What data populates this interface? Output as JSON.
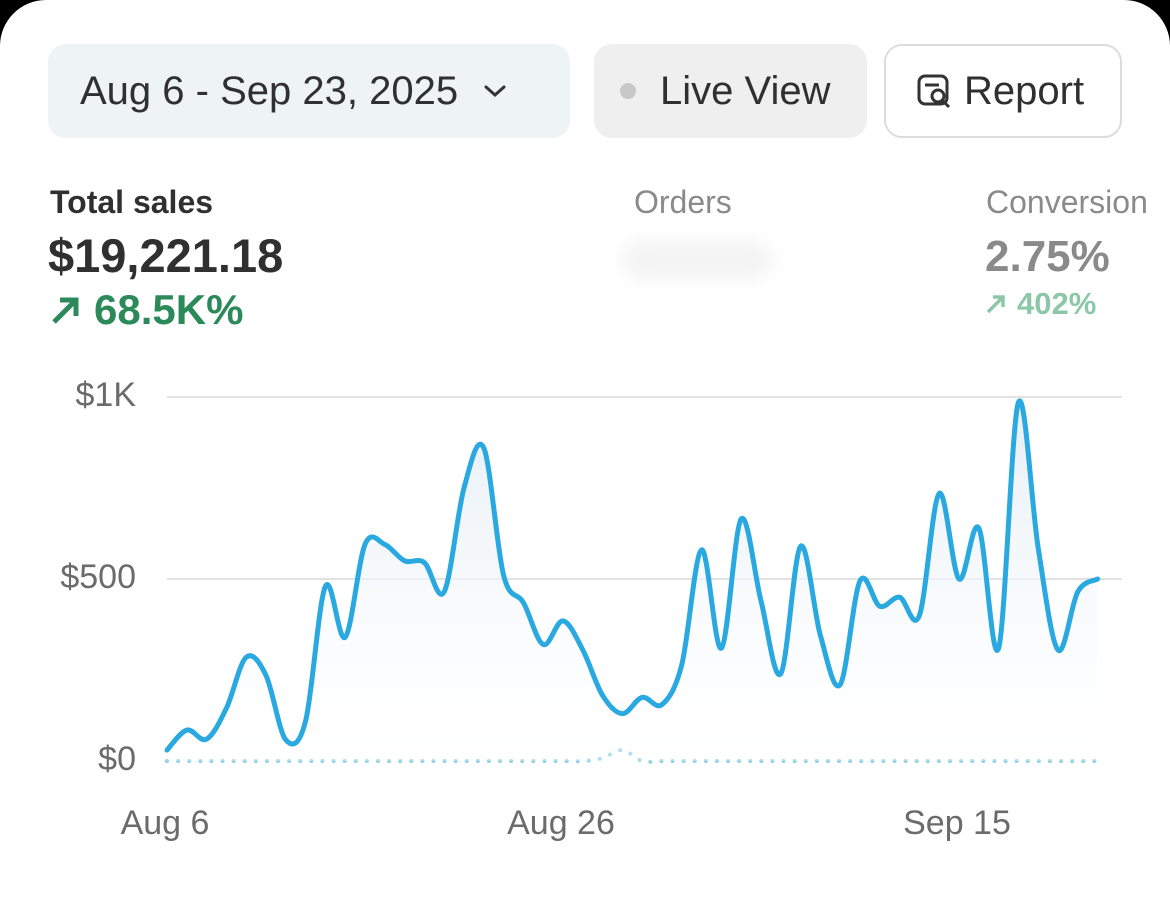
{
  "header": {
    "date_range": "Aug 6 - Sep 23, 2025",
    "live_view": "Live View",
    "report": "Report"
  },
  "metrics": [
    {
      "label": "Total sales",
      "value": "$19,221.18",
      "change": "68.5K%"
    },
    {
      "label": "Orders"
    },
    {
      "label": "Conversion",
      "value": "2.75%",
      "change": "402%"
    }
  ],
  "chart_data": {
    "type": "line",
    "categories": [
      "Aug 6",
      null,
      null,
      null,
      null,
      null,
      null,
      null,
      null,
      null,
      null,
      null,
      null,
      null,
      null,
      null,
      null,
      null,
      null,
      null,
      "Aug 26",
      null,
      null,
      null,
      null,
      null,
      null,
      null,
      null,
      null,
      null,
      null,
      null,
      null,
      null,
      null,
      null,
      null,
      null,
      null,
      "Sep 15",
      null,
      null,
      null,
      null,
      null,
      null,
      null
    ],
    "series": [
      {
        "color": "#2aa8e0",
        "values": [
          30,
          85,
          60,
          145,
          285,
          235,
          58,
          110,
          480,
          340,
          595,
          595,
          550,
          545,
          465,
          750,
          860,
          510,
          435,
          320,
          385,
          305,
          180,
          130,
          175,
          155,
          265,
          580,
          310,
          665,
          440,
          240,
          590,
          345,
          210,
          495,
          425,
          450,
          400,
          735,
          500,
          640,
          310,
          985,
          585,
          305,
          465,
          500
        ]
      },
      {
        "color": "#8fcfe6",
        "dotted": true,
        "values": [
          0,
          0,
          0,
          0,
          0,
          0,
          0,
          0,
          0,
          0,
          0,
          0,
          0,
          0,
          0,
          0,
          0,
          0,
          0,
          0,
          0,
          0,
          8,
          30,
          0,
          0,
          0,
          0,
          0,
          0,
          0,
          0,
          0,
          0,
          0,
          0,
          0,
          0,
          0,
          0,
          0,
          0,
          0,
          0,
          0,
          0,
          0,
          0
        ]
      }
    ],
    "ylim": [
      0,
      1000
    ],
    "yticks": [
      {
        "value": 0,
        "label": "$0"
      },
      {
        "value": 500,
        "label": "$500"
      },
      {
        "value": 1000,
        "label": "$1K"
      }
    ],
    "grid": true
  }
}
